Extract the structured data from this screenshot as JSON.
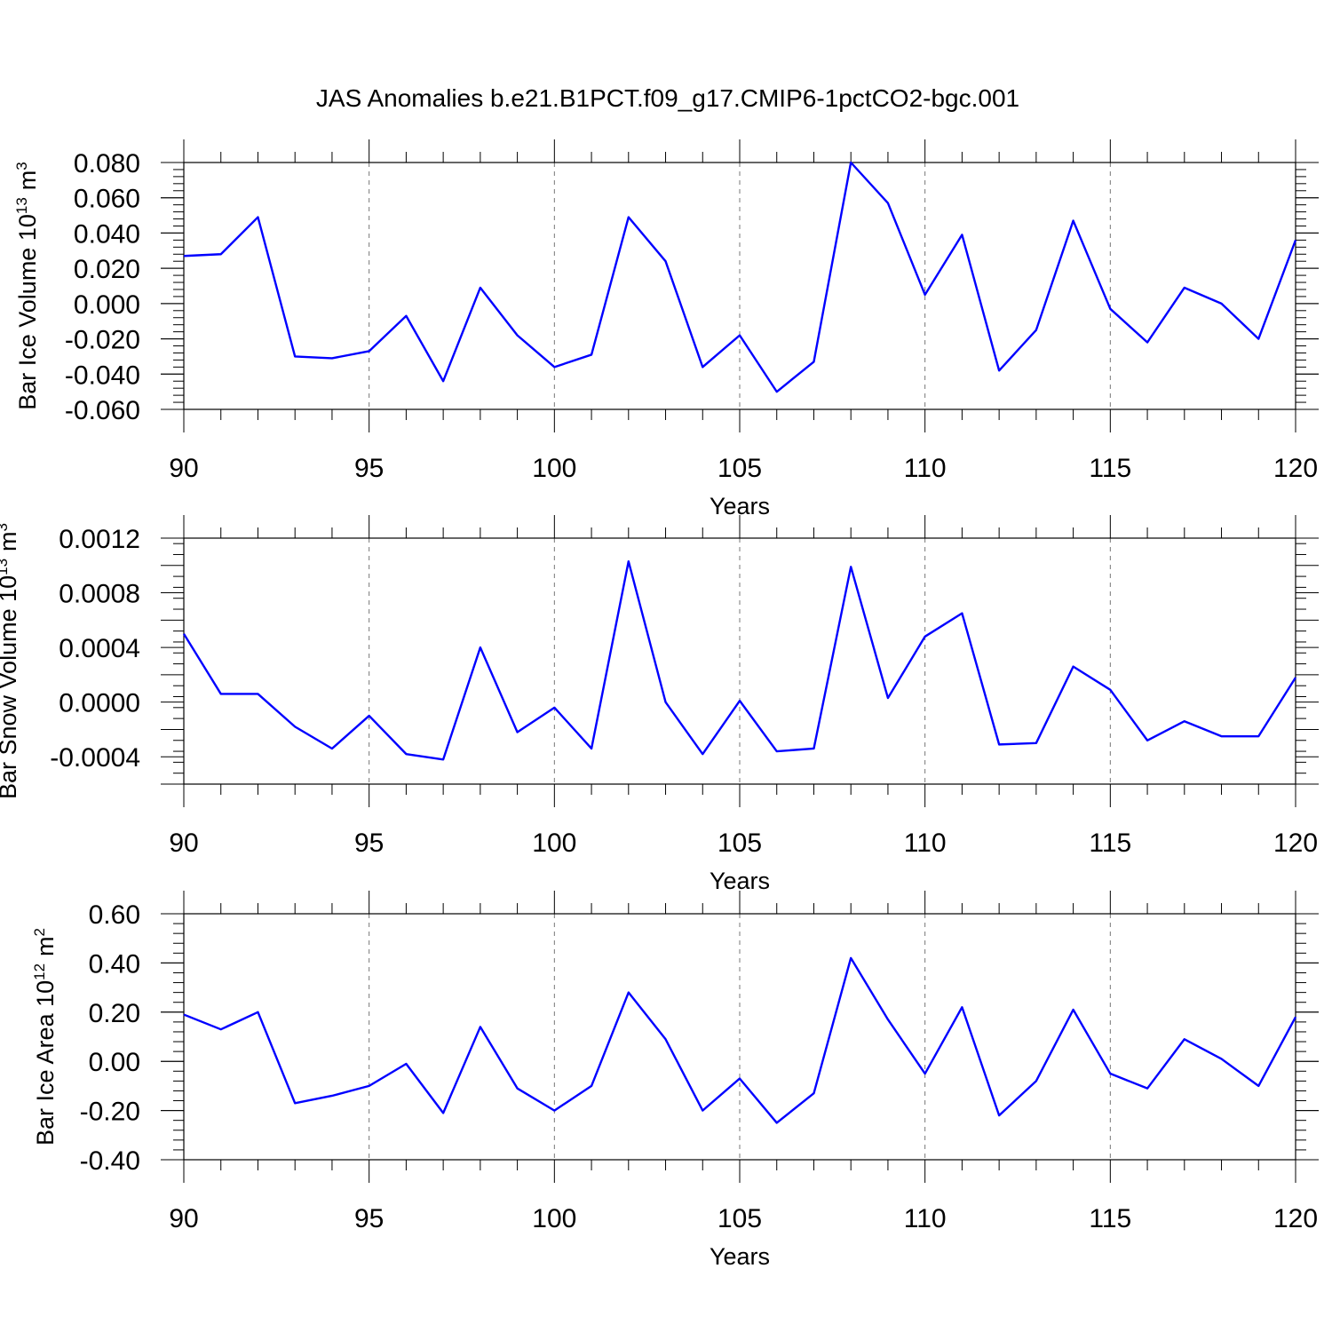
{
  "title": "JAS Anomalies b.e21.B1PCT.f09_g17.CMIP6-1pctCO2-bgc.001",
  "colors": {
    "line": "#0000ff",
    "grid": "#777777"
  },
  "chart_data": [
    {
      "type": "line",
      "ylabel": "Bar Ice Volume 10",
      "ylabel_sup": "13",
      "ylabel_unit": "m",
      "ylabel_unit_sup": "3",
      "xlabel": "Years",
      "xlim": [
        90,
        120
      ],
      "ylim": [
        -0.06,
        0.08
      ],
      "x_ticks": [
        "90",
        "95",
        "100",
        "105",
        "110",
        "115",
        "120"
      ],
      "y_ticks": [
        "-0.060",
        "-0.040",
        "-0.020",
        "0.000",
        "0.020",
        "0.040",
        "0.060",
        "0.080"
      ],
      "y_tick_values": [
        -0.06,
        -0.04,
        -0.02,
        0.0,
        0.02,
        0.04,
        0.06,
        0.08
      ],
      "grid": "vertical dashed at major x ticks",
      "x": [
        90,
        91,
        92,
        93,
        94,
        95,
        96,
        97,
        98,
        99,
        100,
        101,
        102,
        103,
        104,
        105,
        106,
        107,
        108,
        109,
        110,
        111,
        112,
        113,
        114,
        115,
        116,
        117,
        118,
        119,
        120
      ],
      "values": [
        0.027,
        0.028,
        0.049,
        -0.03,
        -0.031,
        -0.027,
        -0.007,
        -0.044,
        0.009,
        -0.018,
        -0.036,
        -0.029,
        0.049,
        0.024,
        -0.036,
        -0.018,
        -0.05,
        -0.033,
        0.08,
        0.057,
        0.005,
        0.039,
        -0.038,
        -0.015,
        0.047,
        -0.003,
        -0.022,
        0.009,
        0.0,
        -0.02,
        0.036
      ]
    },
    {
      "type": "line",
      "ylabel": "Bar Snow Volume 10",
      "ylabel_sup": "13",
      "ylabel_unit": "m",
      "ylabel_unit_sup": "3",
      "xlabel": "Years",
      "xlim": [
        90,
        120
      ],
      "ylim": [
        -0.0006,
        0.0012
      ],
      "x_ticks": [
        "90",
        "95",
        "100",
        "105",
        "110",
        "115",
        "120"
      ],
      "y_ticks": [
        "-0.0004",
        "0.0000",
        "0.0004",
        "0.0008",
        "0.0012"
      ],
      "y_tick_values": [
        -0.0004,
        0.0,
        0.0004,
        0.0008,
        0.0012
      ],
      "grid": "vertical dashed at major x ticks",
      "x": [
        90,
        91,
        92,
        93,
        94,
        95,
        96,
        97,
        98,
        99,
        100,
        101,
        102,
        103,
        104,
        105,
        106,
        107,
        108,
        109,
        110,
        111,
        112,
        113,
        114,
        115,
        116,
        117,
        118,
        119,
        120
      ],
      "values": [
        0.0005,
        6e-05,
        6e-05,
        -0.00018,
        -0.00034,
        -0.0001,
        -0.00038,
        -0.00042,
        0.0004,
        -0.00022,
        -4e-05,
        -0.00034,
        0.00103,
        0.0,
        -0.00038,
        1e-05,
        -0.00036,
        -0.00034,
        0.00099,
        3e-05,
        0.00048,
        0.00065,
        -0.00031,
        -0.0003,
        0.00026,
        9e-05,
        -0.00028,
        -0.00014,
        -0.00025,
        -0.00025,
        0.00018
      ]
    },
    {
      "type": "line",
      "ylabel": "Bar Ice Area 10",
      "ylabel_sup": "12",
      "ylabel_unit": "m",
      "ylabel_unit_sup": "2",
      "xlabel": "Years",
      "xlim": [
        90,
        120
      ],
      "ylim": [
        -0.4,
        0.6
      ],
      "x_ticks": [
        "90",
        "95",
        "100",
        "105",
        "110",
        "115",
        "120"
      ],
      "y_ticks": [
        "-0.40",
        "-0.20",
        "0.00",
        "0.20",
        "0.40",
        "0.60"
      ],
      "y_tick_values": [
        -0.4,
        -0.2,
        0.0,
        0.2,
        0.4,
        0.6
      ],
      "grid": "vertical dashed at major x ticks",
      "x": [
        90,
        91,
        92,
        93,
        94,
        95,
        96,
        97,
        98,
        99,
        100,
        101,
        102,
        103,
        104,
        105,
        106,
        107,
        108,
        109,
        110,
        111,
        112,
        113,
        114,
        115,
        116,
        117,
        118,
        119,
        120
      ],
      "values": [
        0.19,
        0.13,
        0.2,
        -0.17,
        -0.14,
        -0.1,
        -0.01,
        -0.21,
        0.14,
        -0.11,
        -0.2,
        -0.1,
        0.28,
        0.09,
        -0.2,
        -0.07,
        -0.25,
        -0.13,
        0.42,
        0.17,
        -0.05,
        0.22,
        -0.22,
        -0.08,
        0.21,
        -0.05,
        -0.11,
        0.09,
        0.01,
        -0.1,
        0.18
      ]
    }
  ]
}
